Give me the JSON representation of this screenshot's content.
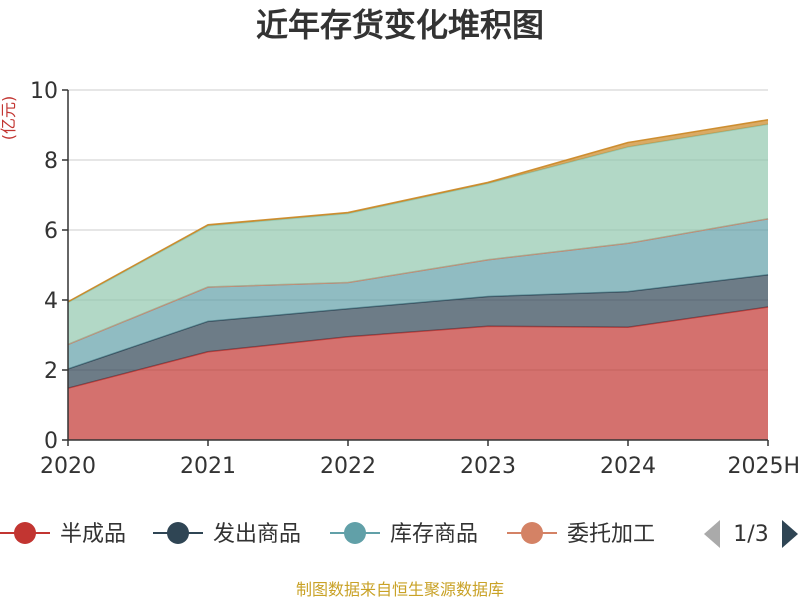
{
  "chart_data": {
    "type": "area",
    "stacked": true,
    "title": "近年存货变化堆积图",
    "ylabel": "(亿元)",
    "categories": [
      "2020",
      "2021",
      "2022",
      "2023",
      "2024",
      "2025H"
    ],
    "ylim": [
      0,
      10
    ],
    "yticks": [
      "0",
      "2",
      "4",
      "6",
      "8",
      "10"
    ],
    "grid": true,
    "series": [
      {
        "name": "半成品",
        "values": [
          1.48,
          2.52,
          2.95,
          3.25,
          3.22,
          3.8
        ],
        "color": "#c23531"
      },
      {
        "name": "发出商品",
        "values": [
          0.55,
          0.87,
          0.8,
          0.85,
          1.02,
          0.92
        ],
        "color": "#2f4554"
      },
      {
        "name": "库存商品",
        "values": [
          0.7,
          0.98,
          0.75,
          1.05,
          1.38,
          1.6
        ],
        "color": "#61a0a8"
      },
      {
        "name": "委托加工",
        "values": [
          0.0,
          0.0,
          0.0,
          0.0,
          0.0,
          0.0
        ],
        "color": "#d48265"
      },
      {
        "name": "",
        "values": [
          1.2,
          1.75,
          1.97,
          2.18,
          2.75,
          2.7
        ],
        "color": "#91c7ae"
      },
      {
        "name": "",
        "values": [
          0.02,
          0.03,
          0.03,
          0.03,
          0.13,
          0.13
        ],
        "color": "#ca8622"
      }
    ],
    "legend": {
      "position": "bottom",
      "page": "1/3",
      "visible_items": [
        "半成品",
        "发出商品",
        "库存商品",
        "委托加工"
      ]
    },
    "source": "制图数据来自恒生聚源数据库"
  },
  "colors": {
    "axis": "#333333",
    "grid": "#cccccc",
    "ylabel": "#c23531",
    "source": "#c9a227",
    "arrow_disabled": "#aaaaaa",
    "arrow_active": "#2f4554"
  }
}
